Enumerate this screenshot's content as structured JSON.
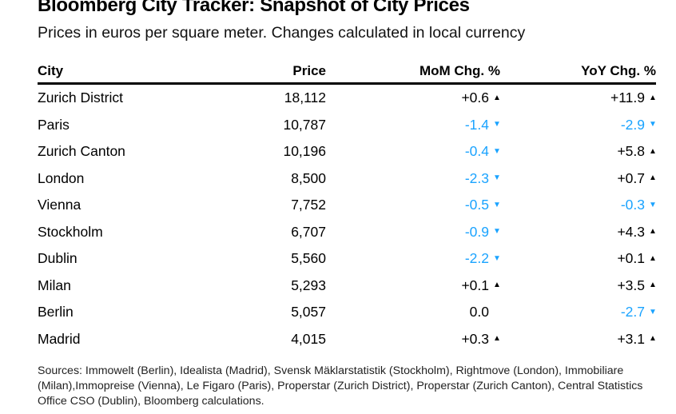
{
  "header": {
    "title": "Bloomberg City Tracker: Snapshot of City Prices",
    "subtitle": "Prices in euros per square meter. Changes calculated in local currency"
  },
  "colors": {
    "positive": "#000000",
    "negative": "#1aa3ff",
    "text": "#000000"
  },
  "chart_data": {
    "type": "table",
    "title": "Bloomberg City Tracker: Snapshot of City Prices",
    "subtitle": "Prices in euros per square meter. Changes calculated in local currency",
    "columns": [
      "City",
      "Price",
      "MoM Chg. %",
      "YoY Chg. %"
    ],
    "rows": [
      {
        "city": "Zurich District",
        "price": "18,112",
        "mom": "+0.6",
        "mom_dir": "up",
        "yoy": "+11.9",
        "yoy_dir": "up"
      },
      {
        "city": "Paris",
        "price": "10,787",
        "mom": "-1.4",
        "mom_dir": "down",
        "yoy": "-2.9",
        "yoy_dir": "down"
      },
      {
        "city": "Zurich Canton",
        "price": "10,196",
        "mom": "-0.4",
        "mom_dir": "down",
        "yoy": "+5.8",
        "yoy_dir": "up"
      },
      {
        "city": "London",
        "price": "8,500",
        "mom": "-2.3",
        "mom_dir": "down",
        "yoy": "+0.7",
        "yoy_dir": "up"
      },
      {
        "city": "Vienna",
        "price": "7,752",
        "mom": "-0.5",
        "mom_dir": "down",
        "yoy": "-0.3",
        "yoy_dir": "down"
      },
      {
        "city": "Stockholm",
        "price": "6,707",
        "mom": "-0.9",
        "mom_dir": "down",
        "yoy": "+4.3",
        "yoy_dir": "up"
      },
      {
        "city": "Dublin",
        "price": "5,560",
        "mom": "-2.2",
        "mom_dir": "down",
        "yoy": "+0.1",
        "yoy_dir": "up"
      },
      {
        "city": "Milan",
        "price": "5,293",
        "mom": "+0.1",
        "mom_dir": "up",
        "yoy": "+3.5",
        "yoy_dir": "up"
      },
      {
        "city": "Berlin",
        "price": "5,057",
        "mom": "0.0",
        "mom_dir": "none",
        "yoy": "-2.7",
        "yoy_dir": "down"
      },
      {
        "city": "Madrid",
        "price": "4,015",
        "mom": "+0.3",
        "mom_dir": "up",
        "yoy": "+3.1",
        "yoy_dir": "up"
      }
    ]
  },
  "icons": {
    "up": "triangle-up-icon",
    "down": "triangle-down-icon"
  },
  "footer": {
    "sources": "Sources: Immowelt (Berlin), Idealista (Madrid), Svensk Mäklarstatistik (Stockholm), Rightmove (London), Immobiliare (Milan),Immopreise (Vienna), Le Figaro (Paris), Properstar (Zurich District), Properstar (Zurich Canton), Central Statistics Office CSO (Dublin), Bloomberg calculations."
  }
}
